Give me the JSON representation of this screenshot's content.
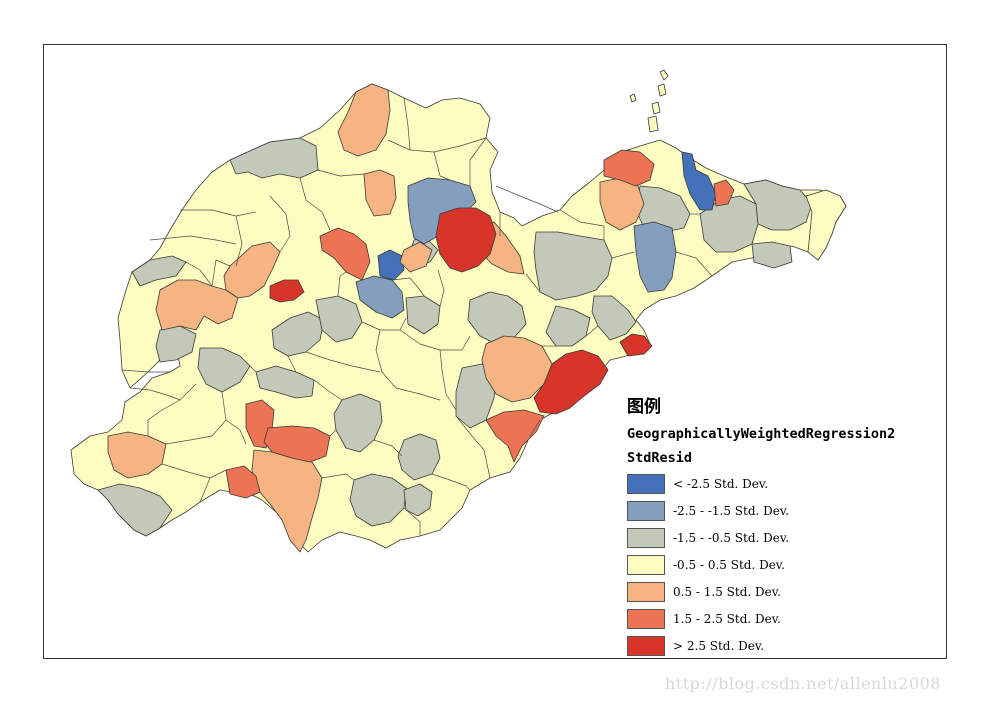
{
  "legend": {
    "title": "图例",
    "layer": "GeographicallyWeightedRegression2",
    "field": "StdResid",
    "classes": [
      {
        "label": "< -2.5 Std. Dev.",
        "color": "#4472b8"
      },
      {
        "label": "-2.5 - -1.5 Std. Dev.",
        "color": "#849fbd"
      },
      {
        "label": "-1.5 - -0.5 Std. Dev.",
        "color": "#c2c9b9"
      },
      {
        "label": "-0.5 - 0.5 Std. Dev.",
        "color": "#fdfcc1"
      },
      {
        "label": "0.5 - 1.5 Std. Dev.",
        "color": "#f6b483"
      },
      {
        "label": "1.5 - 2.5 Std. Dev.",
        "color": "#ec7354"
      },
      {
        "label": "> 2.5 Std. Dev.",
        "color": "#d7342a"
      }
    ]
  },
  "watermark": "http://blog.csdn.net/allenlu2008"
}
